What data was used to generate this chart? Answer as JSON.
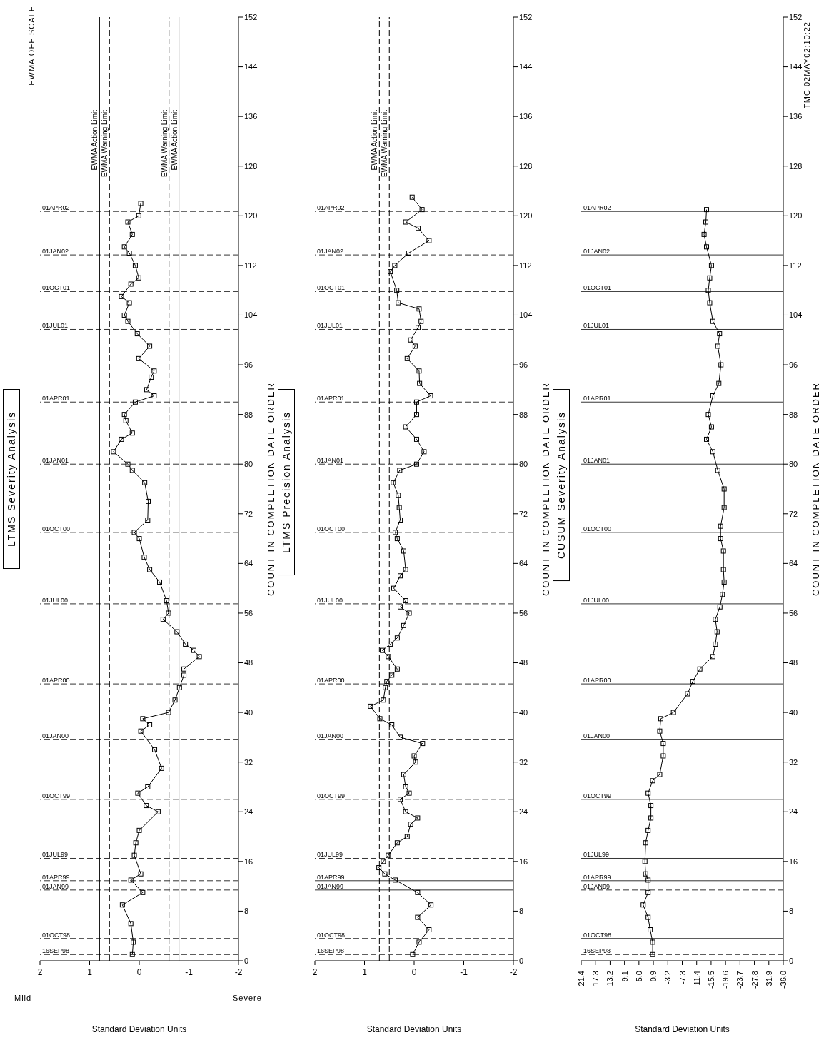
{
  "chart_data": [
    {
      "type": "line",
      "title": "LTMS Severity Analysis",
      "xlabel": "Standard Deviation Units",
      "ylabel": "COUNT IN COMPLETION DATE ORDER",
      "annotations": [
        "Mild",
        "Severe",
        "EWMA OFF SCALE"
      ],
      "xlim": [
        2,
        -2
      ],
      "xticks": [
        2,
        1,
        0,
        -1,
        -2
      ],
      "ylim": [
        0,
        152
      ],
      "yticks": [
        0,
        8,
        16,
        24,
        32,
        40,
        48,
        56,
        64,
        72,
        80,
        88,
        96,
        104,
        112,
        120,
        128,
        136,
        144,
        152
      ],
      "marker": "square",
      "line_style": "solid",
      "grid": false,
      "series": [
        {
          "color": "#000000",
          "x": [
            0.14,
            0.12,
            0.17,
            0.34,
            -0.07,
            0.17,
            -0.03,
            0.1,
            0.07,
            0,
            -0.38,
            -0.14,
            0.03,
            -0.17,
            -0.45,
            -0.31,
            -0.03,
            -0.21,
            -0.07,
            -0.59,
            -0.72,
            -0.81,
            -0.9,
            -0.9,
            -1.21,
            -1.1,
            -0.93,
            -0.76,
            -0.48,
            -0.59,
            -0.55,
            -0.41,
            -0.21,
            -0.1,
            0,
            0.1,
            -0.17,
            -0.18,
            -0.11,
            0.14,
            0.23,
            0.52,
            0.36,
            0.14,
            0.27,
            0.3,
            0.08,
            -0.3,
            -0.15,
            -0.24,
            -0.3,
            0.01,
            -0.21,
            0.04,
            0.23,
            0.3,
            0.2,
            0.36,
            0.17,
            0.01,
            0.08,
            0.2,
            0.3,
            0.14,
            0.23,
            0.01,
            -0.03
          ],
          "values": [
            1,
            3,
            6,
            9,
            11,
            13,
            14,
            17,
            19,
            21,
            24,
            25,
            27,
            28,
            31,
            34,
            37,
            38,
            39,
            40,
            42,
            44,
            46,
            47,
            49,
            50,
            51,
            53,
            55,
            56,
            58,
            61,
            63,
            65,
            68,
            69,
            71,
            74,
            77,
            79,
            80,
            82,
            84,
            85,
            87,
            88,
            90,
            91,
            92,
            94,
            95,
            97,
            99,
            101,
            103,
            104,
            106,
            107,
            109,
            110,
            112,
            114,
            115,
            117,
            119,
            120,
            122
          ]
        }
      ],
      "ref_lines": [
        {
          "axis": "x",
          "value": 0.8,
          "label": "EWMA Action Limit",
          "line_style": "solid"
        },
        {
          "axis": "x",
          "value": 0.6,
          "label": "EWMA Warning Limit",
          "line_style": "dashed"
        },
        {
          "axis": "x",
          "value": -0.6,
          "label": "EWMA Warning Limit",
          "line_style": "dashed"
        },
        {
          "axis": "x",
          "value": -0.8,
          "label": "EWMA Action Limit",
          "line_style": "solid"
        },
        {
          "axis": "y",
          "value": 1,
          "label": "16SEP98",
          "line_style": "dashed"
        },
        {
          "axis": "y",
          "value": 3.6,
          "label": "01OCT98",
          "line_style": "dashed"
        },
        {
          "axis": "y",
          "value": 11.4,
          "label": "01JAN99",
          "line_style": "dashed"
        },
        {
          "axis": "y",
          "value": 12.9,
          "label": "01APR99",
          "line_style": "dashed"
        },
        {
          "axis": "y",
          "value": 16.5,
          "label": "01JUL99",
          "line_style": "dashed"
        },
        {
          "axis": "y",
          "value": 26,
          "label": "01OCT99",
          "line_style": "dashed"
        },
        {
          "axis": "y",
          "value": 35.6,
          "label": "01JAN00",
          "line_style": "dashed"
        },
        {
          "axis": "y",
          "value": 44.6,
          "label": "01APR00",
          "line_style": "dashed"
        },
        {
          "axis": "y",
          "value": 57.5,
          "label": "01JUL00",
          "line_style": "dashed"
        },
        {
          "axis": "y",
          "value": 69,
          "label": "01OCT00",
          "line_style": "dashed"
        },
        {
          "axis": "y",
          "value": 80,
          "label": "01JAN01",
          "line_style": "dashed"
        },
        {
          "axis": "y",
          "value": 90,
          "label": "01APR01",
          "line_style": "dashed"
        },
        {
          "axis": "y",
          "value": 101.7,
          "label": "01JUL01",
          "line_style": "dashed"
        },
        {
          "axis": "y",
          "value": 107.8,
          "label": "01OCT01",
          "line_style": "dashed"
        },
        {
          "axis": "y",
          "value": 113.7,
          "label": "01JAN02",
          "line_style": "dashed"
        },
        {
          "axis": "y",
          "value": 120.7,
          "label": "01APR02",
          "line_style": "dashed"
        }
      ]
    },
    {
      "type": "line",
      "title": "LTMS Precision Analysis",
      "xlabel": "Standard Deviation Units",
      "ylabel": "COUNT IN COMPLETION DATE ORDER",
      "xlim": [
        2,
        -2
      ],
      "xticks": [
        2,
        1,
        0,
        -1,
        -2
      ],
      "ylim": [
        0,
        152
      ],
      "yticks": [
        0,
        8,
        16,
        24,
        32,
        40,
        48,
        56,
        64,
        72,
        80,
        88,
        96,
        104,
        112,
        120,
        128,
        136,
        144,
        152
      ],
      "marker": "square",
      "line_style": "solid",
      "grid": false,
      "series": [
        {
          "color": "#000000",
          "x": [
            0.03,
            -0.1,
            -0.3,
            -0.07,
            -0.34,
            -0.07,
            0.38,
            0.59,
            0.71,
            0.62,
            0.52,
            0.34,
            0.14,
            0.07,
            -0.07,
            0.17,
            0.28,
            0.1,
            0.17,
            0.21,
            -0.03,
            0,
            -0.17,
            0.28,
            0.45,
            0.69,
            0.88,
            0.62,
            0.58,
            0.55,
            0.45,
            0.34,
            0.52,
            0.64,
            0.48,
            0.34,
            0.21,
            0.1,
            0.28,
            0.17,
            0.41,
            0.28,
            0.17,
            0.21,
            0.34,
            0.38,
            0.28,
            0.3,
            0.32,
            0.42,
            0.29,
            -0.05,
            -0.2,
            -0.05,
            0.17,
            -0.05,
            -0.05,
            -0.33,
            -0.11,
            -0.1,
            0.14,
            -0.02,
            0.07,
            -0.08,
            -0.14,
            -0.1,
            0.32,
            0.35,
            0.48,
            0.39,
            0.11,
            -0.3,
            -0.08,
            0.17,
            -0.16,
            0.04
          ],
          "values": [
            1,
            3,
            5,
            7,
            9,
            11,
            13,
            14,
            15,
            16,
            17,
            19,
            20,
            22,
            23,
            24,
            26,
            27,
            28,
            30,
            32,
            33,
            35,
            36,
            38,
            39,
            41,
            42,
            44,
            45,
            46,
            47,
            49,
            50,
            51,
            52,
            54,
            56,
            57,
            58,
            60,
            62,
            63,
            66,
            68,
            69,
            71,
            73,
            75,
            77,
            79,
            80,
            82,
            84,
            86,
            88,
            90,
            91,
            93,
            95,
            97,
            99,
            100,
            102,
            103,
            105,
            106,
            108,
            111,
            112,
            114,
            116,
            118,
            119,
            121,
            123
          ]
        }
      ],
      "ref_lines": [
        {
          "axis": "x",
          "value": 0.7,
          "label": "EWMA Action Limit",
          "line_style": "dashed"
        },
        {
          "axis": "x",
          "value": 0.5,
          "label": "EWMA Warning Limit",
          "line_style": "dashed"
        },
        {
          "axis": "y",
          "value": 1,
          "label": "16SEP98",
          "line_style": "dashed"
        },
        {
          "axis": "y",
          "value": 3.6,
          "label": "01OCT98",
          "line_style": "dashed"
        },
        {
          "axis": "y",
          "value": 11.4,
          "label": "01JAN99",
          "line_style": "solid"
        },
        {
          "axis": "y",
          "value": 12.9,
          "label": "01APR99",
          "line_style": "solid"
        },
        {
          "axis": "y",
          "value": 16.5,
          "label": "01JUL99",
          "line_style": "dashed"
        },
        {
          "axis": "y",
          "value": 26,
          "label": "01OCT99",
          "line_style": "dashed"
        },
        {
          "axis": "y",
          "value": 35.6,
          "label": "01JAN00",
          "line_style": "dashed"
        },
        {
          "axis": "y",
          "value": 44.6,
          "label": "01APR00",
          "line_style": "dashed"
        },
        {
          "axis": "y",
          "value": 57.5,
          "label": "01JUL00",
          "line_style": "dashed"
        },
        {
          "axis": "y",
          "value": 69,
          "label": "01OCT00",
          "line_style": "dashed"
        },
        {
          "axis": "y",
          "value": 80,
          "label": "01JAN01",
          "line_style": "dashed"
        },
        {
          "axis": "y",
          "value": 90,
          "label": "01APR01",
          "line_style": "dashed"
        },
        {
          "axis": "y",
          "value": 101.7,
          "label": "01JUL01",
          "line_style": "dashed"
        },
        {
          "axis": "y",
          "value": 107.8,
          "label": "01OCT01",
          "line_style": "dashed"
        },
        {
          "axis": "y",
          "value": 113.7,
          "label": "01JAN02",
          "line_style": "dashed"
        },
        {
          "axis": "y",
          "value": 120.7,
          "label": "01APR02",
          "line_style": "dashed"
        }
      ]
    },
    {
      "type": "line",
      "title": "CUSUM Severity Analysis",
      "xlabel": "Standard Deviation Units",
      "ylabel": "COUNT IN COMPLETION DATE ORDER",
      "annotations": [
        "TMC 02MAY02:10:22"
      ],
      "xlim": [
        21.4,
        -36
      ],
      "xticks": [
        21.4,
        17.3,
        13.2,
        9.1,
        {
          "value": 5,
          "label": "5.0"
        },
        0.9,
        -3.2,
        -7.3,
        -11.4,
        -15.5,
        -19.6,
        -23.7,
        -27.8,
        -31.9,
        {
          "value": -36,
          "label": "-36.0"
        }
      ],
      "ylim": [
        0,
        152
      ],
      "yticks": [
        0,
        8,
        16,
        24,
        32,
        40,
        48,
        56,
        64,
        72,
        80,
        88,
        96,
        104,
        112,
        120,
        128,
        136,
        144,
        152
      ],
      "marker": "square",
      "line_style": "solid",
      "grid": false,
      "series": [
        {
          "color": "#000000",
          "x": [
            1.1,
            1.1,
            1.8,
            2.4,
            3.8,
            2.4,
            2.4,
            3.1,
            3.3,
            3.1,
            2.4,
            1.6,
            1.6,
            2.4,
            1.1,
            -0.9,
            -1.9,
            -1.9,
            -0.9,
            -1.2,
            -4.8,
            -8.8,
            -10.3,
            -12.3,
            -16.0,
            -16.7,
            -17.2,
            -16.7,
            -18.0,
            -18.7,
            -19.2,
            -19.0,
            -19.0,
            -18.2,
            -18.2,
            -19.2,
            -19.2,
            -17.4,
            -16.0,
            -14.2,
            -15.6,
            -14.7,
            -16.0,
            -17.7,
            -18.3,
            -17.4,
            -17.9,
            -16.0,
            -15.1,
            -14.7,
            -15.1,
            -15.6,
            -14.2,
            -13.5,
            -14.0,
            -14.2
          ],
          "values": [
            1,
            3,
            5,
            7,
            9,
            11,
            13,
            14,
            16,
            19,
            21,
            23,
            25,
            27,
            29,
            30,
            33,
            35,
            37,
            39,
            40,
            43,
            45,
            47,
            49,
            51,
            53,
            55,
            57,
            59,
            61,
            63,
            66,
            68,
            70,
            73,
            76,
            79,
            82,
            84,
            86,
            88,
            91,
            93,
            96,
            99,
            101,
            103,
            106,
            108,
            110,
            112,
            115,
            117,
            119,
            121
          ]
        }
      ],
      "ref_lines": [
        {
          "axis": "y",
          "value": 1,
          "label": "16SEP98",
          "line_style": "dashed"
        },
        {
          "axis": "y",
          "value": 3.6,
          "label": "01OCT98",
          "line_style": "solid"
        },
        {
          "axis": "y",
          "value": 11.4,
          "label": "01JAN99",
          "line_style": "dashed"
        },
        {
          "axis": "y",
          "value": 12.9,
          "label": "01APR99",
          "line_style": "solid"
        },
        {
          "axis": "y",
          "value": 16.5,
          "label": "01JUL99",
          "line_style": "solid"
        },
        {
          "axis": "y",
          "value": 26,
          "label": "01OCT99",
          "line_style": "solid"
        },
        {
          "axis": "y",
          "value": 35.6,
          "label": "01JAN00",
          "line_style": "solid"
        },
        {
          "axis": "y",
          "value": 44.6,
          "label": "01APR00",
          "line_style": "solid"
        },
        {
          "axis": "y",
          "value": 57.5,
          "label": "01JUL00",
          "line_style": "solid"
        },
        {
          "axis": "y",
          "value": 69,
          "label": "01OCT00",
          "line_style": "solid"
        },
        {
          "axis": "y",
          "value": 80,
          "label": "01JAN01",
          "line_style": "solid"
        },
        {
          "axis": "y",
          "value": 90,
          "label": "01APR01",
          "line_style": "solid"
        },
        {
          "axis": "y",
          "value": 101.7,
          "label": "01JUL01",
          "line_style": "solid"
        },
        {
          "axis": "y",
          "value": 107.8,
          "label": "01OCT01",
          "line_style": "solid"
        },
        {
          "axis": "y",
          "value": 113.7,
          "label": "01JAN02",
          "line_style": "solid"
        },
        {
          "axis": "y",
          "value": 120.7,
          "label": "01APR02",
          "line_style": "solid"
        }
      ]
    }
  ]
}
